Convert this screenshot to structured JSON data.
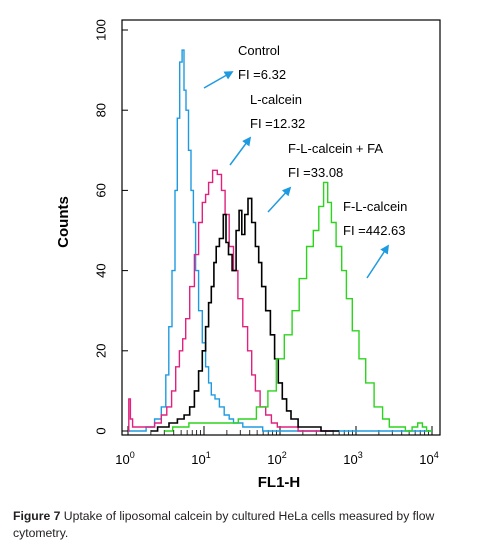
{
  "chart_data": {
    "type": "line",
    "xlabel": "FL1-H",
    "ylabel": "Counts",
    "xscale": "log",
    "xlim": [
      1,
      10000
    ],
    "ylim": [
      0,
      100
    ],
    "yticks": [
      "0",
      "20",
      "40",
      "60",
      "80",
      "100"
    ],
    "xticks": [
      {
        "base": "10",
        "exp": "0"
      },
      {
        "base": "10",
        "exp": "1"
      },
      {
        "base": "10",
        "exp": "2"
      },
      {
        "base": "10",
        "exp": "3"
      },
      {
        "base": "10",
        "exp": "4"
      }
    ],
    "series": [
      {
        "name": "Control",
        "color": "#1e9be0",
        "x": [
          1,
          1.5,
          2,
          2.5,
          3,
          3.3,
          3.6,
          4,
          4.3,
          4.6,
          5,
          5.3,
          5.6,
          6,
          6.5,
          7,
          7.5,
          8,
          9,
          10,
          11,
          12,
          13,
          15,
          17,
          20,
          23,
          26,
          30,
          35,
          40,
          50,
          70,
          100,
          300,
          10000
        ],
        "y": [
          0,
          0,
          1,
          3,
          6,
          14,
          26,
          40,
          60,
          78,
          92,
          95,
          85,
          80,
          70,
          60,
          52,
          40,
          30,
          22,
          16,
          12,
          9,
          8,
          6,
          4,
          3,
          2,
          2,
          1,
          1,
          1,
          0,
          0,
          0,
          0
        ]
      },
      {
        "name": "L-calcein",
        "color": "#e0217e",
        "x": [
          1,
          1.05,
          1.1,
          1.2,
          1.5,
          2,
          2.5,
          3,
          3.5,
          4,
          4.5,
          5,
          5.5,
          6,
          7,
          8,
          9,
          10,
          11,
          12,
          14,
          16,
          18,
          20,
          23,
          26,
          30,
          35,
          40,
          45,
          50,
          60,
          70,
          85,
          100,
          150,
          200,
          300,
          500
        ],
        "y": [
          0,
          8,
          3,
          1,
          1,
          1,
          2,
          4,
          6,
          10,
          16,
          20,
          23,
          28,
          36,
          44,
          52,
          57,
          59,
          62,
          65,
          64,
          60,
          54,
          46,
          40,
          33,
          26,
          20,
          14,
          10,
          6,
          4,
          2,
          1,
          1,
          0,
          0,
          0
        ]
      },
      {
        "name": "F-L-calcein + FA",
        "color": "#000000",
        "x": [
          2,
          3,
          4,
          5,
          6,
          7,
          8,
          9,
          10,
          11,
          12,
          13,
          14,
          15,
          17,
          19,
          20,
          22,
          25,
          28,
          30,
          33,
          36,
          40,
          45,
          50,
          55,
          60,
          70,
          80,
          90,
          100,
          115,
          130,
          150,
          200,
          300,
          400,
          600
        ],
        "y": [
          0,
          1,
          2,
          3,
          4,
          6,
          10,
          15,
          20,
          26,
          32,
          36,
          42,
          46,
          48,
          54,
          47,
          44,
          40,
          50,
          55,
          49,
          54,
          58,
          52,
          46,
          42,
          36,
          30,
          24,
          18,
          12,
          8,
          5,
          3,
          1,
          1,
          0,
          0
        ]
      },
      {
        "name": "F-L-calcein",
        "color": "#2cd41e",
        "x": [
          3,
          5,
          8,
          10,
          20,
          40,
          60,
          80,
          100,
          130,
          160,
          200,
          250,
          300,
          350,
          400,
          450,
          500,
          600,
          700,
          800,
          1000,
          1200,
          1500,
          2000,
          2500,
          3000,
          4000,
          5000,
          6000,
          7000,
          8000,
          9000,
          10000
        ],
        "y": [
          0,
          1,
          2,
          2,
          2,
          3,
          6,
          10,
          18,
          24,
          30,
          38,
          46,
          50,
          56,
          62,
          57,
          52,
          46,
          40,
          33,
          25,
          18,
          12,
          6,
          3,
          1,
          1,
          0,
          1,
          2,
          1,
          0,
          0
        ]
      }
    ],
    "annotations": [
      {
        "label": "Control",
        "fi": "FI =6.32"
      },
      {
        "label": "L-calcein",
        "fi": "FI =12.32"
      },
      {
        "label": "F-L-calcein + FA",
        "fi": "FI =33.08"
      },
      {
        "label": "F-L-calcein",
        "fi": "FI =442.63"
      }
    ]
  },
  "caption": {
    "bold": "Figure 7",
    "text": "Uptake of liposomal calcein by cultured HeLa cells measured by flow cytometry."
  }
}
